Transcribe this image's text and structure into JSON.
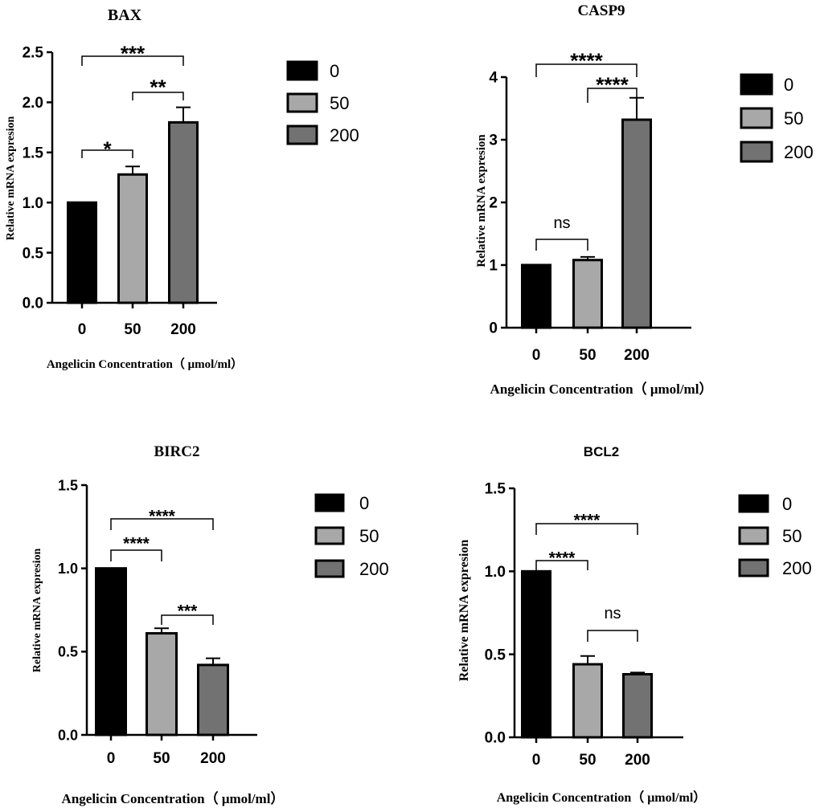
{
  "colors": {
    "bar_0": "#000000",
    "bar_50": "#a8a8a8",
    "bar_200": "#727272",
    "axis": "#000000",
    "background": "#ffffff"
  },
  "chart_data": [
    {
      "type": "bar",
      "title": "BAX",
      "xlabel": "Angelicin Concentration（ μmol/ml）",
      "ylabel": "Relative mRNA expresion",
      "categories": [
        "0",
        "50",
        "200"
      ],
      "values": [
        1.0,
        1.28,
        1.8
      ],
      "errors": [
        0,
        0.08,
        0.15
      ],
      "ylim": [
        0,
        2.5
      ],
      "yticks": [
        "0.0",
        "0.5",
        "1.0",
        "1.5",
        "2.0",
        "2.5"
      ],
      "legend": [
        "0",
        "50",
        "200"
      ],
      "significance": [
        {
          "from": 0,
          "to": 1,
          "label": "*"
        },
        {
          "from": 1,
          "to": 2,
          "label": "**"
        },
        {
          "from": 0,
          "to": 2,
          "label": "***"
        }
      ]
    },
    {
      "type": "bar",
      "title": "CASP9",
      "xlabel": "Angelicin Concentration（ μmol/ml）",
      "ylabel": "Relative mRNA expresion",
      "categories": [
        "0",
        "50",
        "200"
      ],
      "values": [
        1.0,
        1.08,
        3.32
      ],
      "errors": [
        0,
        0.05,
        0.35
      ],
      "ylim": [
        0,
        4
      ],
      "yticks": [
        "0",
        "1",
        "2",
        "3",
        "4"
      ],
      "legend": [
        "0",
        "50",
        "200"
      ],
      "significance": [
        {
          "from": 0,
          "to": 1,
          "label": "ns"
        },
        {
          "from": 1,
          "to": 2,
          "label": "****"
        },
        {
          "from": 0,
          "to": 2,
          "label": "****"
        }
      ]
    },
    {
      "type": "bar",
      "title": "BIRC2",
      "xlabel": "Angelicin Concentration（ μmol/ml）",
      "ylabel": "Relative mRNA expresion",
      "categories": [
        "0",
        "50",
        "200"
      ],
      "values": [
        1.0,
        0.61,
        0.42
      ],
      "errors": [
        0,
        0.03,
        0.04
      ],
      "ylim": [
        0,
        1.5
      ],
      "yticks": [
        "0.0",
        "0.5",
        "1.0",
        "1.5"
      ],
      "legend": [
        "0",
        "50",
        "200"
      ],
      "significance": [
        {
          "from": 0,
          "to": 1,
          "label": "****"
        },
        {
          "from": 1,
          "to": 2,
          "label": "***"
        },
        {
          "from": 0,
          "to": 2,
          "label": "****"
        }
      ]
    },
    {
      "type": "bar",
      "title": "BCL2",
      "xlabel": "Angelicin Concentration（ μmol/ml）",
      "ylabel": "Relative mRNA expresion",
      "categories": [
        "0",
        "50",
        "200"
      ],
      "values": [
        1.0,
        0.44,
        0.38
      ],
      "errors": [
        0,
        0.05,
        0.01
      ],
      "ylim": [
        0,
        1.5
      ],
      "yticks": [
        "0.0",
        "0.5",
        "1.0",
        "1.5"
      ],
      "legend": [
        "0",
        "50",
        "200"
      ],
      "significance": [
        {
          "from": 0,
          "to": 1,
          "label": "****"
        },
        {
          "from": 1,
          "to": 2,
          "label": "ns"
        },
        {
          "from": 0,
          "to": 2,
          "label": "****"
        }
      ]
    }
  ]
}
